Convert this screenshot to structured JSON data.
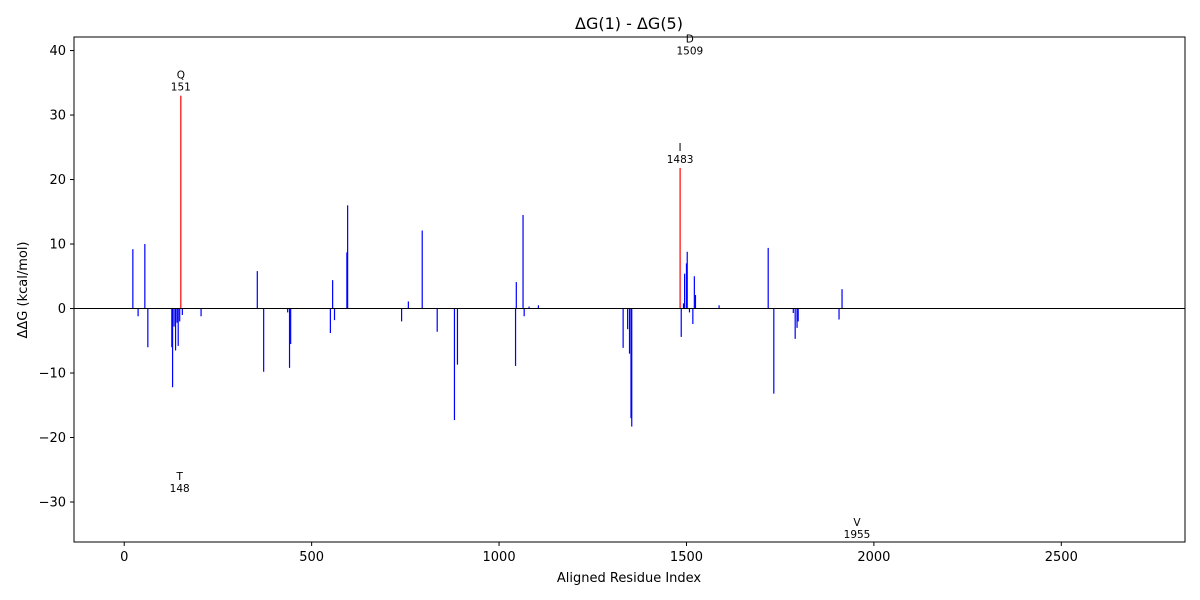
{
  "chart_data": {
    "type": "bar",
    "title": "ΔG(1) - ΔG(5)",
    "xlabel": "Aligned Residue Index",
    "ylabel": "ΔΔG (kcal/mol)",
    "xlim": [
      -134,
      2830
    ],
    "ylim": [
      -36.2,
      42.1
    ],
    "xticks": [
      0,
      500,
      1000,
      1500,
      2000,
      2500
    ],
    "yticks": [
      -30,
      -20,
      -10,
      0,
      10,
      20,
      30,
      40
    ],
    "grid": false,
    "colors": {
      "default": "#0000ff",
      "highlight": "#ff0000",
      "zero_line": "#000000"
    },
    "bars": [
      {
        "x": 23,
        "y": 9.2
      },
      {
        "x": 37,
        "y": -1.2
      },
      {
        "x": 55,
        "y": 10.0
      },
      {
        "x": 63,
        "y": -6.0
      },
      {
        "x": 127,
        "y": -6.0
      },
      {
        "x": 129,
        "y": -12.2
      },
      {
        "x": 133,
        "y": -2.8
      },
      {
        "x": 137,
        "y": -6.5
      },
      {
        "x": 141,
        "y": -2.2
      },
      {
        "x": 144,
        "y": -5.8
      },
      {
        "x": 148,
        "y": -2.0
      },
      {
        "x": 151,
        "y": 33.0,
        "highlight": true
      },
      {
        "x": 155,
        "y": -1.0
      },
      {
        "x": 205,
        "y": -1.2
      },
      {
        "x": 355,
        "y": 5.8
      },
      {
        "x": 372,
        "y": -9.8
      },
      {
        "x": 436,
        "y": -0.6
      },
      {
        "x": 441,
        "y": -9.2
      },
      {
        "x": 444,
        "y": -5.5
      },
      {
        "x": 550,
        "y": -3.8
      },
      {
        "x": 556,
        "y": 4.4
      },
      {
        "x": 561,
        "y": -1.8
      },
      {
        "x": 594,
        "y": 8.7
      },
      {
        "x": 596,
        "y": 16.0
      },
      {
        "x": 740,
        "y": -2.0
      },
      {
        "x": 758,
        "y": 1.1
      },
      {
        "x": 795,
        "y": 12.1
      },
      {
        "x": 835,
        "y": -3.6
      },
      {
        "x": 881,
        "y": -17.3
      },
      {
        "x": 889,
        "y": -8.7
      },
      {
        "x": 1044,
        "y": -8.9
      },
      {
        "x": 1046,
        "y": 4.1
      },
      {
        "x": 1064,
        "y": 14.5
      },
      {
        "x": 1067,
        "y": -1.2
      },
      {
        "x": 1080,
        "y": 0.3
      },
      {
        "x": 1105,
        "y": 0.5
      },
      {
        "x": 1331,
        "y": -6.1
      },
      {
        "x": 1343,
        "y": -3.2
      },
      {
        "x": 1348,
        "y": -7.0
      },
      {
        "x": 1352,
        "y": -17.0
      },
      {
        "x": 1354,
        "y": -18.3
      },
      {
        "x": 1483,
        "y": 21.8,
        "highlight": true
      },
      {
        "x": 1486,
        "y": -4.4
      },
      {
        "x": 1492,
        "y": 0.8
      },
      {
        "x": 1495,
        "y": 5.4
      },
      {
        "x": 1500,
        "y": 7.0
      },
      {
        "x": 1502,
        "y": 8.8
      },
      {
        "x": 1508,
        "y": -0.6
      },
      {
        "x": 1517,
        "y": -2.4
      },
      {
        "x": 1521,
        "y": 5.0
      },
      {
        "x": 1524,
        "y": 2.1
      },
      {
        "x": 1587,
        "y": 0.5
      },
      {
        "x": 1718,
        "y": 9.4
      },
      {
        "x": 1733,
        "y": -13.2
      },
      {
        "x": 1785,
        "y": -0.7
      },
      {
        "x": 1790,
        "y": -4.7
      },
      {
        "x": 1795,
        "y": -3.0
      },
      {
        "x": 1798,
        "y": -2.0
      },
      {
        "x": 1907,
        "y": -1.7
      },
      {
        "x": 1915,
        "y": 3.0
      }
    ],
    "annotations": [
      {
        "residue": "Q",
        "index": "151",
        "x": 151,
        "y": 34.1
      },
      {
        "residue": "D",
        "index": "1509",
        "x": 1509,
        "y": 39.7
      },
      {
        "residue": "I",
        "index": "1483",
        "x": 1483,
        "y": 22.9
      },
      {
        "residue": "T",
        "index": "148",
        "x": 148,
        "y": -28.1
      },
      {
        "residue": "V",
        "index": "1955",
        "x": 1955,
        "y": -35.3
      }
    ]
  }
}
